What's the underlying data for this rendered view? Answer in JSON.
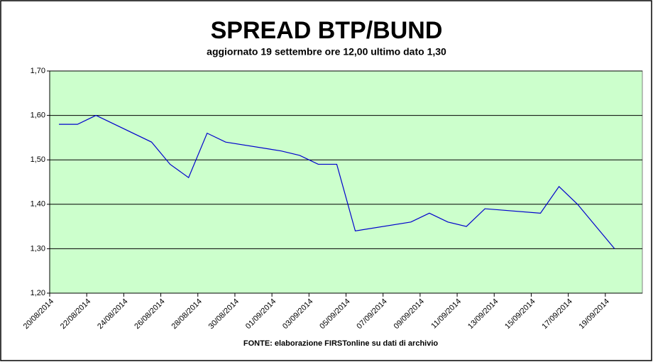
{
  "chart_data": {
    "type": "line",
    "title": "SPREAD BTP/BUND",
    "subtitle": "aggiornato 19 settembre ore 12,00 ultimo dato 1,30",
    "source": "FONTE: elaborazione FIRSTonline su dati di archivio",
    "x": [
      "20/08/2014",
      "21/08/2014",
      "22/08/2014",
      "25/08/2014",
      "26/08/2014",
      "27/08/2014",
      "28/08/2014",
      "29/08/2014",
      "01/09/2014",
      "02/09/2014",
      "03/09/2014",
      "04/09/2014",
      "05/09/2014",
      "08/09/2014",
      "09/09/2014",
      "10/09/2014",
      "11/09/2014",
      "12/09/2014",
      "15/09/2014",
      "16/09/2014",
      "17/09/2014",
      "18/09/2014",
      "19/09/2014"
    ],
    "series": [
      {
        "name": "Spread",
        "color": "#0000cc",
        "values": [
          1.58,
          1.58,
          1.6,
          1.54,
          1.49,
          1.46,
          1.56,
          1.54,
          1.52,
          1.51,
          1.49,
          1.49,
          1.34,
          1.36,
          1.38,
          1.36,
          1.35,
          1.39,
          1.38,
          1.44,
          1.4,
          1.35,
          1.3
        ]
      }
    ],
    "xlim": [
      "20/08/2014",
      "21/09/2014"
    ],
    "xticks": [
      "20/08/2014",
      "22/08/2014",
      "24/08/2014",
      "26/08/2014",
      "28/08/2014",
      "30/08/2014",
      "01/09/2014",
      "03/09/2014",
      "05/09/2014",
      "07/09/2014",
      "09/09/2014",
      "11/09/2014",
      "13/09/2014",
      "15/09/2014",
      "17/09/2014",
      "19/09/2014"
    ],
    "ylim": [
      1.2,
      1.7
    ],
    "yticks": [
      {
        "value": 1.2,
        "label": "1,20"
      },
      {
        "value": 1.3,
        "label": "1,30"
      },
      {
        "value": 1.4,
        "label": "1,40"
      },
      {
        "value": 1.5,
        "label": "1,50"
      },
      {
        "value": 1.6,
        "label": "1,60"
      },
      {
        "value": 1.7,
        "label": "1,70"
      }
    ],
    "grid": true
  }
}
